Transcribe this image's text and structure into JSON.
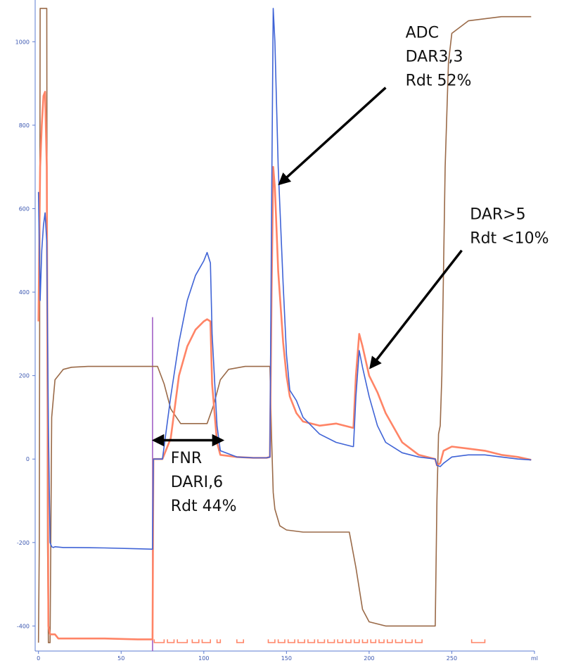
{
  "chart_data": {
    "type": "line",
    "title": "",
    "xlabel": "",
    "ylabel": "",
    "xlim": [
      -2,
      300
    ],
    "ylim": [
      -460,
      1100
    ],
    "y_ticks": [
      -400,
      -200,
      0,
      200,
      400,
      600,
      800,
      1000
    ],
    "x_ticks": [
      {
        "value": 0,
        "label": "0"
      },
      {
        "value": 50,
        "label": "50"
      },
      {
        "value": 100,
        "label": "100"
      },
      {
        "value": 150,
        "label": "150"
      },
      {
        "value": 200,
        "label": "200"
      },
      {
        "value": 250,
        "label": "250"
      },
      {
        "value": 300,
        "label": "ml"
      }
    ],
    "grid": false,
    "legend": "none",
    "colors": {
      "blue": "#3f63d6",
      "orange": "#ff8466",
      "brown": "#9a6a48",
      "purple": "#9b56c2",
      "axis": "#5b7bd0",
      "arrow": "#000000"
    },
    "series": [
      {
        "color": "blue",
        "x": [
          0,
          1,
          2,
          3,
          4,
          5,
          6,
          7,
          8,
          9,
          10,
          15,
          20,
          40,
          60,
          69,
          69.5,
          73,
          74,
          75,
          80,
          85,
          90,
          95,
          100,
          102,
          104,
          105,
          108,
          110,
          120,
          130,
          138,
          140,
          141,
          142,
          143,
          145,
          148,
          150,
          152,
          156,
          160,
          170,
          180,
          190,
          190.5,
          192,
          194,
          196,
          200,
          205,
          210,
          220,
          230,
          240,
          241,
          243,
          245,
          250,
          260,
          270,
          280,
          290,
          298
        ],
        "y": [
          640,
          380,
          500,
          560,
          590,
          520,
          80,
          -200,
          -210,
          -212,
          -210,
          -212,
          -212,
          -213,
          -215,
          -216,
          0,
          0,
          0,
          0,
          150,
          280,
          380,
          440,
          475,
          495,
          470,
          300,
          80,
          20,
          5,
          3,
          3,
          5,
          600,
          1080,
          1000,
          700,
          420,
          250,
          165,
          140,
          100,
          60,
          40,
          30,
          30,
          150,
          260,
          220,
          150,
          80,
          40,
          15,
          5,
          0,
          -15,
          -18,
          -10,
          5,
          10,
          10,
          5,
          0,
          -2
        ]
      },
      {
        "color": "orange",
        "x": [
          0,
          1,
          2,
          3,
          4,
          5,
          6,
          7,
          8,
          9,
          10,
          12,
          15,
          20,
          40,
          60,
          69,
          69.5,
          73,
          74,
          75,
          80,
          85,
          90,
          95,
          100,
          102,
          104,
          105,
          108,
          110,
          120,
          130,
          138,
          140,
          141,
          142,
          143,
          145,
          148,
          150,
          152,
          156,
          160,
          170,
          180,
          190,
          190.5,
          192,
          194,
          196,
          200,
          205,
          210,
          220,
          230,
          240,
          241,
          243,
          245,
          250,
          260,
          270,
          280,
          290,
          298
        ],
        "y": [
          330,
          700,
          800,
          870,
          880,
          700,
          -400,
          -420,
          -420,
          -420,
          -420,
          -430,
          -430,
          -430,
          -430,
          -432,
          -432,
          0,
          0,
          0,
          0,
          50,
          200,
          270,
          310,
          330,
          335,
          330,
          180,
          40,
          10,
          5,
          3,
          3,
          5,
          400,
          700,
          650,
          450,
          280,
          200,
          150,
          110,
          90,
          80,
          85,
          75,
          75,
          200,
          300,
          270,
          200,
          160,
          110,
          40,
          10,
          0,
          -15,
          -10,
          20,
          30,
          25,
          20,
          10,
          5,
          -2
        ]
      },
      {
        "color": "brown",
        "x": [
          0,
          0.5,
          1,
          2,
          3,
          4,
          5,
          5.5,
          6,
          7,
          8,
          10,
          15,
          20,
          30,
          60,
          72,
          76,
          80,
          86,
          87,
          94,
          98,
          102,
          106,
          110,
          115,
          125,
          138,
          140,
          141,
          142,
          143,
          146,
          150,
          160,
          180,
          188,
          192,
          196,
          200,
          210,
          220,
          230,
          238,
          240,
          241,
          242,
          243,
          244,
          246,
          248,
          250,
          260,
          280,
          298
        ],
        "y": [
          -440,
          -200,
          1080,
          1080,
          1080,
          1080,
          1080,
          -200,
          -440,
          -440,
          100,
          190,
          215,
          220,
          222,
          222,
          222,
          180,
          120,
          85,
          85,
          85,
          85,
          85,
          130,
          190,
          215,
          222,
          222,
          222,
          50,
          -80,
          -120,
          -160,
          -170,
          -175,
          -175,
          -175,
          -260,
          -360,
          -390,
          -400,
          -400,
          -400,
          -400,
          -400,
          -100,
          60,
          80,
          200,
          700,
          950,
          1020,
          1050,
          1060,
          1060
        ]
      }
    ],
    "marker_line": {
      "x": 69,
      "y_top": 340,
      "y_bottom": -460,
      "color": "purple"
    },
    "fraction_ticks": [
      {
        "x_start": 70,
        "x_end": 76,
        "color": "orange"
      },
      {
        "x_start": 78,
        "x_end": 82,
        "color": "orange"
      },
      {
        "x_start": 84,
        "x_end": 90,
        "color": "orange"
      },
      {
        "x_start": 93,
        "x_end": 97,
        "color": "orange"
      },
      {
        "x_start": 99,
        "x_end": 104,
        "color": "orange"
      },
      {
        "x_start": 108,
        "x_end": 110,
        "color": "orange"
      },
      {
        "x_start": 120,
        "x_end": 124,
        "color": "orange"
      },
      {
        "x_start": 139,
        "x_end": 143,
        "color": "orange"
      },
      {
        "x_start": 145,
        "x_end": 149,
        "color": "orange"
      },
      {
        "x_start": 151,
        "x_end": 155,
        "color": "orange"
      },
      {
        "x_start": 157,
        "x_end": 161,
        "color": "orange"
      },
      {
        "x_start": 163,
        "x_end": 167,
        "color": "orange"
      },
      {
        "x_start": 169,
        "x_end": 173,
        "color": "orange"
      },
      {
        "x_start": 175,
        "x_end": 179,
        "color": "orange"
      },
      {
        "x_start": 181,
        "x_end": 184,
        "color": "orange"
      },
      {
        "x_start": 186,
        "x_end": 189,
        "color": "orange"
      },
      {
        "x_start": 191,
        "x_end": 194,
        "color": "orange"
      },
      {
        "x_start": 196,
        "x_end": 199,
        "color": "orange"
      },
      {
        "x_start": 201,
        "x_end": 204,
        "color": "orange"
      },
      {
        "x_start": 206,
        "x_end": 209,
        "color": "orange"
      },
      {
        "x_start": 211,
        "x_end": 214,
        "color": "orange"
      },
      {
        "x_start": 216,
        "x_end": 220,
        "color": "orange"
      },
      {
        "x_start": 222,
        "x_end": 226,
        "color": "orange"
      },
      {
        "x_start": 228,
        "x_end": 232,
        "color": "orange"
      },
      {
        "x_start": 262,
        "x_end": 270,
        "color": "orange"
      }
    ],
    "annotations": [
      {
        "lines": [
          "ADC",
          "DAR3,3",
          "Rdt 52%"
        ],
        "text_x": 222,
        "text_y": 1010,
        "arrow": {
          "from_x": 210,
          "from_y": 890,
          "to_x": 146,
          "to_y": 660,
          "heads": "end"
        }
      },
      {
        "lines": [
          "DAR>5",
          "Rdt <10%"
        ],
        "text_x": 261,
        "text_y": 575,
        "arrow": {
          "from_x": 256,
          "from_y": 500,
          "to_x": 201,
          "to_y": 220,
          "heads": "end"
        }
      },
      {
        "lines": [
          "FNR",
          "DARI,6",
          "Rdt 44%"
        ],
        "text_x": 80,
        "text_y": -10,
        "arrow": {
          "from_x": 70,
          "from_y": 45,
          "to_x": 111,
          "to_y": 45,
          "heads": "both"
        }
      }
    ]
  }
}
